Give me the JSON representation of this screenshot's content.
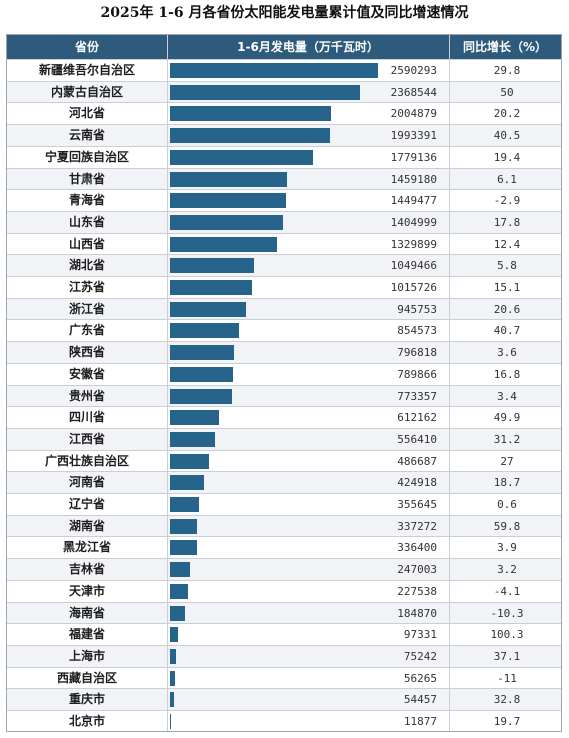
{
  "title": "2025年 1-6 月各省份太阳能发电量累计值及同比增速情况",
  "header": {
    "province": "省份",
    "value": "1-6月发电量（万千瓦时）",
    "yoy": "同比增长（%）"
  },
  "colors": {
    "bar": "#27648c",
    "header_bg": "#2e5a7c"
  },
  "chart_data": {
    "type": "bar",
    "title": "2025年 1-6 月各省份太阳能发电量累计值及同比增速情况",
    "orientation": "horizontal",
    "categories": [
      "新疆维吾尔自治区",
      "内蒙古自治区",
      "河北省",
      "云南省",
      "宁夏回族自治区",
      "甘肃省",
      "青海省",
      "山东省",
      "山西省",
      "湖北省",
      "江苏省",
      "浙江省",
      "广东省",
      "陕西省",
      "安徽省",
      "贵州省",
      "四川省",
      "江西省",
      "广西壮族自治区",
      "河南省",
      "辽宁省",
      "湖南省",
      "黑龙江省",
      "吉林省",
      "天津市",
      "海南省",
      "福建省",
      "上海市",
      "西藏自治区",
      "重庆市",
      "北京市"
    ],
    "series": [
      {
        "name": "1-6月发电量（万千瓦时）",
        "values": [
          2590293,
          2368544,
          2004879,
          1993391,
          1779136,
          1459180,
          1449477,
          1404999,
          1329899,
          1049466,
          1015726,
          945753,
          854573,
          796818,
          789866,
          773357,
          612162,
          556410,
          486687,
          424918,
          355645,
          337272,
          336400,
          247003,
          227538,
          184870,
          97331,
          75242,
          56265,
          54457,
          11877
        ]
      },
      {
        "name": "同比增长（%）",
        "values": [
          "29.8",
          "50",
          "20.2",
          "40.5",
          "19.4",
          "6.1",
          "-2.9",
          "17.8",
          "12.4",
          "5.8",
          "15.1",
          "20.6",
          "40.7",
          "3.6",
          "16.8",
          "3.4",
          "49.9",
          "31.2",
          "27",
          "18.7",
          "0.6",
          "59.8",
          "3.9",
          "3.2",
          "-4.1",
          "-10.3",
          "100.3",
          "37.1",
          "-11",
          "32.8",
          "19.7"
        ]
      }
    ],
    "xlim": [
      0,
      2590293
    ]
  }
}
